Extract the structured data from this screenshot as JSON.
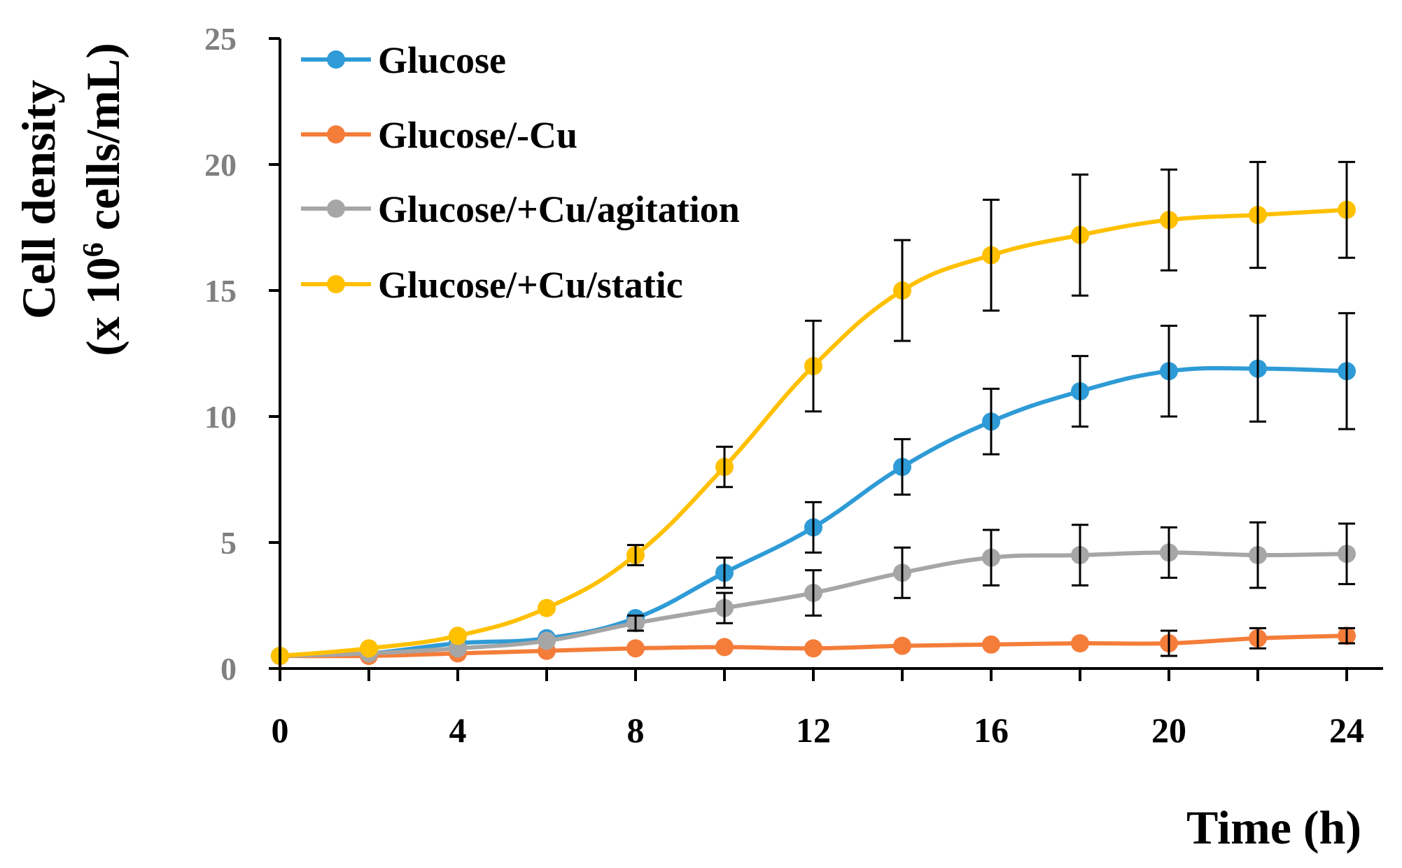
{
  "chart_data": {
    "type": "line",
    "title": "",
    "xlabel": "Time (h)",
    "ylabel_line1": "Cell density",
    "ylabel_line2_prefix": "(x 10",
    "ylabel_line2_exp": "6",
    "ylabel_line2_suffix": " cells/mL)",
    "xlim": [
      0,
      24
    ],
    "ylim": [
      0,
      25
    ],
    "x_ticks": [
      "0",
      "4",
      "8",
      "12",
      "16",
      "20",
      "24"
    ],
    "y_ticks": [
      "0",
      "5",
      "10",
      "15",
      "20",
      "25"
    ],
    "x": [
      0,
      2,
      4,
      6,
      8,
      10,
      12,
      14,
      16,
      18,
      20,
      22,
      24
    ],
    "legend_position": "top-left",
    "series": [
      {
        "name": "Glucose",
        "color": "#2E9BD6",
        "values": [
          0.5,
          0.6,
          1.0,
          1.2,
          2.0,
          3.8,
          5.6,
          8.0,
          9.8,
          11.0,
          11.8,
          11.9,
          11.8
        ],
        "errors": [
          0,
          0,
          0,
          0,
          0,
          0.6,
          1.0,
          1.1,
          1.3,
          1.4,
          1.8,
          2.1,
          2.3
        ]
      },
      {
        "name": "Glucose/-Cu",
        "color": "#F47D3A",
        "values": [
          0.5,
          0.5,
          0.6,
          0.7,
          0.8,
          0.85,
          0.8,
          0.9,
          0.95,
          1.0,
          1.0,
          1.2,
          1.3
        ],
        "errors": [
          0,
          0,
          0,
          0,
          0,
          0,
          0,
          0,
          0,
          0,
          0.5,
          0.4,
          0.3
        ]
      },
      {
        "name": "Glucose/+Cu/agitation",
        "color": "#A6A6A6",
        "values": [
          0.5,
          0.6,
          0.8,
          1.1,
          1.8,
          2.4,
          3.0,
          3.8,
          4.4,
          4.5,
          4.6,
          4.5,
          4.55
        ],
        "errors": [
          0,
          0,
          0,
          0,
          0.3,
          0.6,
          0.9,
          1.0,
          1.1,
          1.2,
          1.0,
          1.3,
          1.2
        ]
      },
      {
        "name": "Glucose/+Cu/static",
        "color": "#FFC000",
        "values": [
          0.5,
          0.8,
          1.3,
          2.4,
          4.5,
          8.0,
          12.0,
          15.0,
          16.4,
          17.2,
          17.8,
          18.0,
          18.2
        ],
        "errors": [
          0,
          0,
          0,
          0,
          0.4,
          0.8,
          1.8,
          2.0,
          2.2,
          2.4,
          2.0,
          2.1,
          1.9
        ]
      }
    ]
  }
}
